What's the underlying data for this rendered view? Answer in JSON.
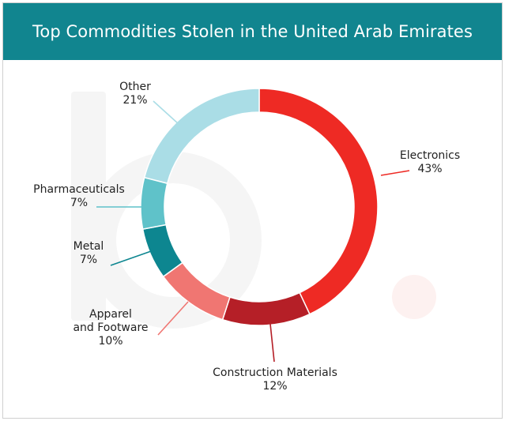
{
  "chart_data": {
    "type": "pie",
    "variant": "donut",
    "title": "Top Commodities Stolen in the United Arab Emirates",
    "slices": [
      {
        "label": "Electronics",
        "value": 43,
        "value_label": "43%",
        "color": "#ee2a24"
      },
      {
        "label": "Construction Materials",
        "value": 12,
        "value_label": "12%",
        "color": "#b51f27"
      },
      {
        "label": "Apparel and Footware",
        "label_lines": [
          "Apparel",
          "and Footware"
        ],
        "value": 10,
        "value_label": "10%",
        "color": "#f07672"
      },
      {
        "label": "Metal",
        "value": 7,
        "value_label": "7%",
        "color": "#0d8690"
      },
      {
        "label": "Pharmaceuticals",
        "value": 7,
        "value_label": "7%",
        "color": "#5fc2c9"
      },
      {
        "label": "Other",
        "value": 21,
        "value_label": "21%",
        "color": "#aadde6"
      }
    ],
    "legend": "none"
  },
  "colors": {
    "header_bg": "#11858f",
    "header_text": "#ffffff",
    "watermark": "#f4f4f4",
    "watermark_dot": "#fdeeee"
  }
}
